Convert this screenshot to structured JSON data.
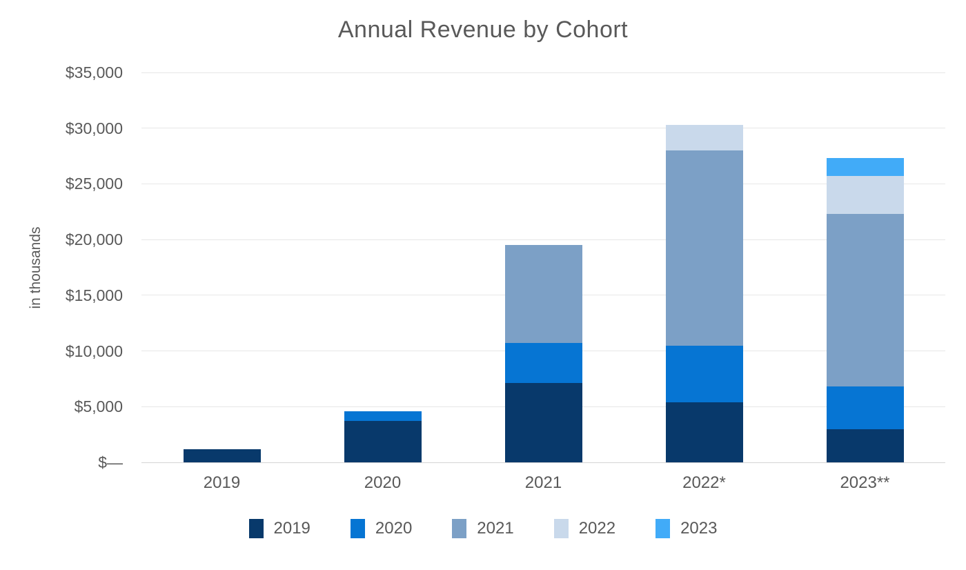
{
  "title": "Annual Revenue by Cohort",
  "colors": {
    "text": "#595959",
    "gridline": "#e7e7e7",
    "baseline": "#d4d4d4",
    "background": "#ffffff"
  },
  "chart_data": {
    "type": "bar",
    "stacked": true,
    "title": "Annual Revenue by Cohort",
    "ylabel": "in thousands",
    "xlabel": "",
    "categories": [
      "2019",
      "2020",
      "2021",
      "2022*",
      "2023**"
    ],
    "series": [
      {
        "name": "2019",
        "color": "#08396b",
        "values": [
          1200,
          3700,
          7100,
          5400,
          3000
        ]
      },
      {
        "name": "2020",
        "color": "#0675d3",
        "values": [
          0,
          900,
          3600,
          5100,
          3800
        ]
      },
      {
        "name": "2021",
        "color": "#7ca0c6",
        "values": [
          0,
          0,
          8800,
          17500,
          15500
        ]
      },
      {
        "name": "2022",
        "color": "#c9d9eb",
        "values": [
          0,
          0,
          0,
          2300,
          3400
        ]
      },
      {
        "name": "2023",
        "color": "#41abf8",
        "values": [
          0,
          0,
          0,
          0,
          1600
        ]
      }
    ],
    "stack_totals": [
      1200,
      4600,
      19500,
      30300,
      27300
    ],
    "ylim": [
      0,
      35000
    ],
    "y_tick_interval": 5000,
    "y_tick_labels": [
      "$—",
      "$5,000",
      "$10,000",
      "$15,000",
      "$20,000",
      "$25,000",
      "$30,000",
      "$35,000"
    ],
    "grid": true,
    "legend_position": "bottom"
  }
}
